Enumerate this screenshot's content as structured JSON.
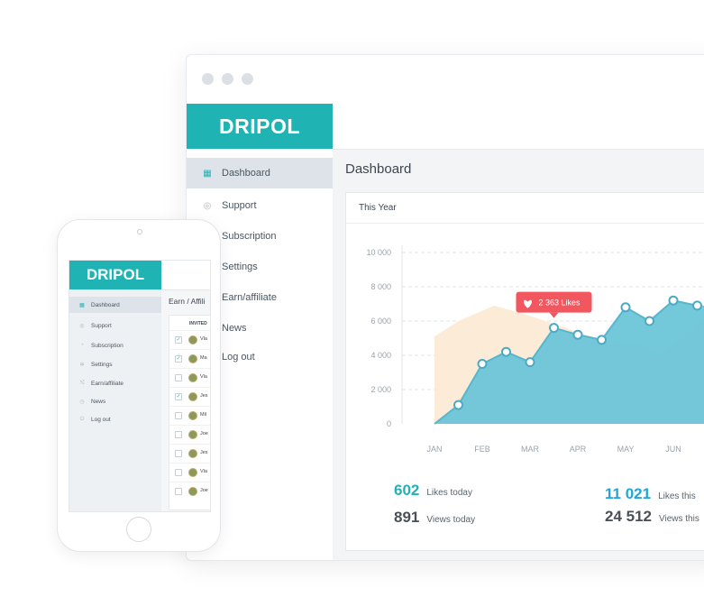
{
  "brand": "DRIPOL",
  "desktop": {
    "nav": [
      {
        "label": "Dashboard",
        "icon": "grid-icon",
        "active": true
      },
      {
        "label": "Support",
        "icon": "lifebuoy-icon"
      },
      {
        "label": "Subscription",
        "icon": "rss-icon"
      },
      {
        "label": "Settings",
        "icon": "gear-icon"
      },
      {
        "label": "Earn/affiliate",
        "icon": "share-icon"
      },
      {
        "label": "News",
        "icon": "clock-icon"
      },
      {
        "label": "Log out",
        "icon": "power-icon"
      }
    ],
    "page_title": "Dashboard",
    "card_title": "This Year",
    "stats": {
      "likes_today_value": "602",
      "likes_today_label": "Likes today",
      "views_today_value": "891",
      "views_today_label": "Views today",
      "likes_year_value": "11 021",
      "likes_year_label": "Likes this",
      "views_year_value": "24 512",
      "views_year_label": "Views this"
    }
  },
  "chart_data": {
    "type": "area",
    "categories": [
      "JAN",
      "FEB",
      "MAR",
      "APR",
      "MAY",
      "JUN"
    ],
    "y_ticks": [
      "0",
      "2 000",
      "4 000",
      "6 000",
      "8 000",
      "10 000"
    ],
    "ylim": [
      0,
      10000
    ],
    "grid": true,
    "series": [
      {
        "color": "#fcebd7",
        "x": [
          0,
          0.5,
          1.25,
          2,
          2.75,
          3.5,
          4.25,
          4.75,
          5.25,
          5.75
        ],
        "values": [
          5100,
          6000,
          6900,
          6300,
          5600,
          4900,
          4700,
          4100,
          5200,
          6400
        ]
      },
      {
        "color": "#6cc5d8",
        "x": [
          0,
          0.5,
          1,
          1.5,
          2,
          2.5,
          3,
          3.5,
          4,
          4.5,
          5,
          5.5
        ],
        "values": [
          0,
          1100,
          3500,
          4200,
          3600,
          5600,
          5200,
          4900,
          6800,
          6000,
          7200,
          6900
        ]
      }
    ],
    "tooltip": {
      "label": "2 363 Likes",
      "icon": "heart-icon",
      "color": "#f2565e"
    }
  },
  "mobile": {
    "page_title": "Earn / Affili",
    "table_header": "INVITED",
    "rows": [
      {
        "name": "Vla",
        "checked": true
      },
      {
        "name": "Ma",
        "checked": true
      },
      {
        "name": "Vla",
        "checked": false
      },
      {
        "name": "Jes",
        "checked": true
      },
      {
        "name": "Mil",
        "checked": false
      },
      {
        "name": "Joe",
        "checked": false
      },
      {
        "name": "Jes",
        "checked": false
      },
      {
        "name": "Vla",
        "checked": false
      },
      {
        "name": "Joe",
        "checked": false
      }
    ]
  },
  "colors": {
    "brand": "#1fb3b3",
    "accent_blue": "#22a6d6",
    "tooltip": "#f2565e"
  }
}
